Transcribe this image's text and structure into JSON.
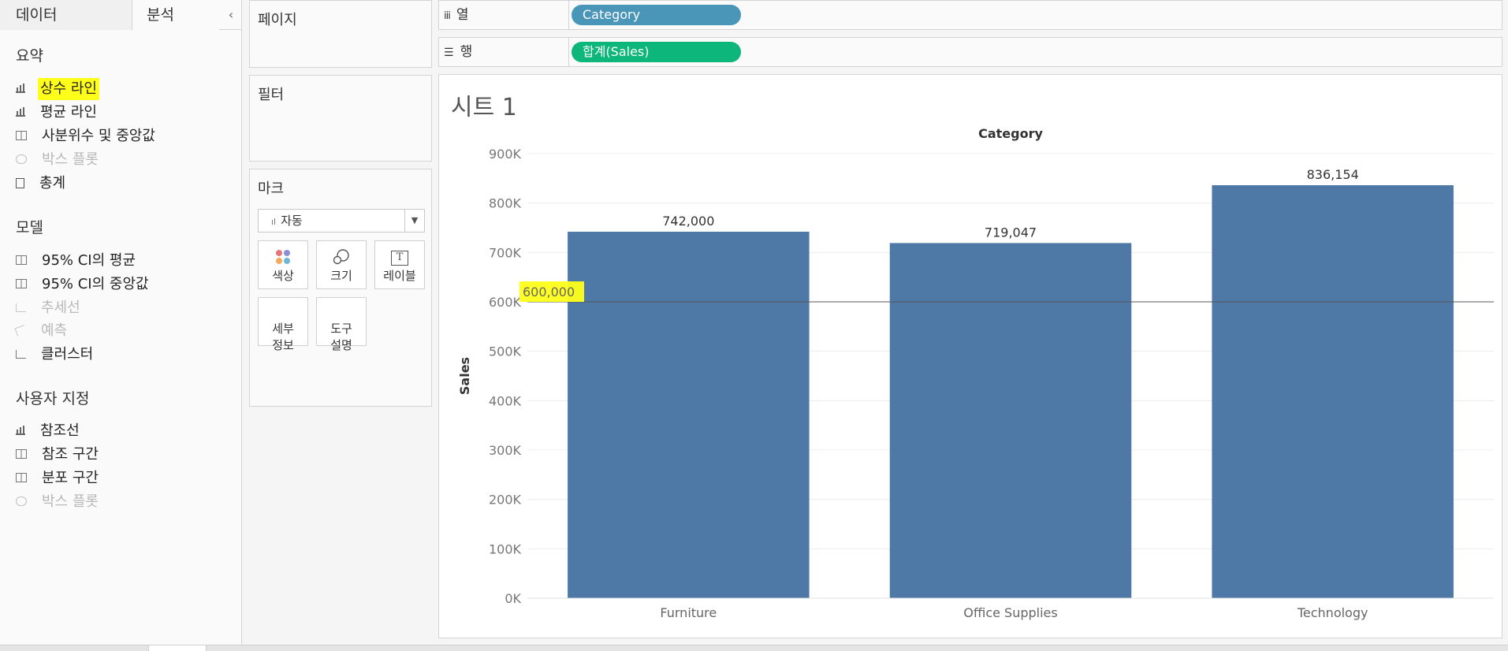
{
  "left_pane": {
    "tabs": [
      "데이터",
      "분석"
    ],
    "collapse_glyph": "‹",
    "sections": [
      {
        "title": "요약",
        "items": [
          {
            "label": "상수 라인",
            "icon": "bar-chart-icon",
            "disabled": false,
            "highlight": true
          },
          {
            "label": "평균 라인",
            "icon": "bar-chart-icon",
            "disabled": false,
            "highlight": false
          },
          {
            "label": "사분위수 및 중앙값",
            "icon": "box-icon",
            "disabled": false,
            "highlight": false
          },
          {
            "label": "박스 플롯",
            "icon": "box-plot-icon",
            "disabled": true,
            "highlight": false
          },
          {
            "label": "총계",
            "icon": "total-icon",
            "disabled": false,
            "highlight": false
          }
        ]
      },
      {
        "title": "모델",
        "items": [
          {
            "label": "95% CI의 평균",
            "icon": "box-icon",
            "disabled": false,
            "highlight": false
          },
          {
            "label": "95% CI의 중앙값",
            "icon": "box-icon",
            "disabled": false,
            "highlight": false
          },
          {
            "label": "추세선",
            "icon": "trend-icon",
            "disabled": true,
            "highlight": false
          },
          {
            "label": "예측",
            "icon": "forecast-icon",
            "disabled": true,
            "highlight": false
          },
          {
            "label": "클러스터",
            "icon": "cluster-icon",
            "disabled": false,
            "highlight": false
          }
        ]
      },
      {
        "title": "사용자 지정",
        "items": [
          {
            "label": "참조선",
            "icon": "bar-chart-icon",
            "disabled": false,
            "highlight": false
          },
          {
            "label": "참조 구간",
            "icon": "box-icon",
            "disabled": false,
            "highlight": false
          },
          {
            "label": "분포 구간",
            "icon": "box-icon",
            "disabled": false,
            "highlight": false
          },
          {
            "label": "박스 플롯",
            "icon": "box-plot-icon",
            "disabled": true,
            "highlight": false
          }
        ]
      }
    ]
  },
  "cards": {
    "pages": "페이지",
    "filters": "필터",
    "marks": "마크",
    "marks_type": "자동",
    "mark_buttons": [
      {
        "label": "색상",
        "icon": "color-icon"
      },
      {
        "label": "크기",
        "icon": "size-icon"
      },
      {
        "label": "레이블",
        "icon": "label-icon",
        "glyph": "T"
      },
      {
        "label": "세부\n정보",
        "icon": "detail-icon"
      },
      {
        "label": "도구\n설명",
        "icon": "tooltip-icon"
      }
    ]
  },
  "shelves": {
    "columns_label": "열",
    "columns_glyph": "iii",
    "rows_label": "행",
    "rows_glyph": "☰",
    "column_pill": "Category",
    "row_pill": "합계(Sales)"
  },
  "sheet": {
    "title": "시트 1"
  },
  "colors": {
    "bar": "#4e79a7",
    "column_pill": "#4a96b9",
    "row_pill": "#0db67a",
    "highlight": "#ffff1a"
  },
  "chart_data": {
    "type": "bar",
    "title": "Category",
    "ylabel": "Sales",
    "xlabel": "",
    "categories": [
      "Furniture",
      "Office Supplies",
      "Technology"
    ],
    "values": [
      742000,
      719047,
      836154
    ],
    "value_labels": [
      "742,000",
      "719,047",
      "836,154"
    ],
    "ylim": [
      0,
      900000
    ],
    "yticks": [
      0,
      100000,
      200000,
      300000,
      400000,
      500000,
      600000,
      700000,
      800000,
      900000
    ],
    "ytick_labels": [
      "0K",
      "100K",
      "200K",
      "300K",
      "400K",
      "500K",
      "600K",
      "700K",
      "800K",
      "900K"
    ],
    "reference_line": {
      "value": 600000,
      "label": "600,000"
    },
    "grid": true
  }
}
